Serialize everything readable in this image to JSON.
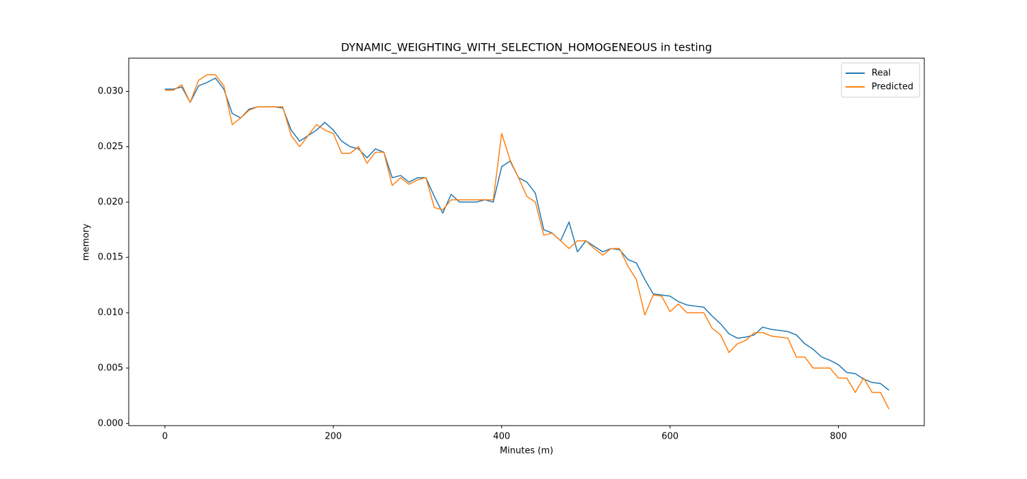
{
  "chart_data": {
    "type": "line",
    "title": "DYNAMIC_WEIGHTING_WITH_SELECTION_HOMOGENEOUS in testing",
    "x_label": "Minutes (m)",
    "y_label": "memory",
    "x": [
      0,
      10,
      20,
      30,
      40,
      50,
      60,
      70,
      80,
      90,
      100,
      110,
      120,
      130,
      140,
      150,
      160,
      170,
      180,
      190,
      200,
      210,
      220,
      230,
      240,
      250,
      260,
      270,
      280,
      290,
      300,
      310,
      320,
      330,
      340,
      350,
      360,
      370,
      380,
      390,
      400,
      410,
      420,
      430,
      440,
      450,
      460,
      470,
      480,
      490,
      500,
      510,
      520,
      530,
      540,
      550,
      560,
      570,
      580,
      590,
      600,
      610,
      620,
      630,
      640,
      650,
      660,
      670,
      680,
      690,
      700,
      710,
      720,
      730,
      740,
      750,
      760,
      770,
      780,
      790,
      800,
      810,
      820,
      830,
      840,
      850,
      860
    ],
    "series": [
      {
        "name": "Real",
        "color": "#1f77b4",
        "values": [
          0.0302,
          0.0302,
          0.0304,
          0.029,
          0.0305,
          0.0308,
          0.0312,
          0.0302,
          0.028,
          0.0276,
          0.0284,
          0.0286,
          0.0286,
          0.0286,
          0.0285,
          0.0265,
          0.0255,
          0.026,
          0.0265,
          0.0272,
          0.0265,
          0.0255,
          0.025,
          0.0248,
          0.024,
          0.0248,
          0.0245,
          0.0222,
          0.0224,
          0.0218,
          0.0222,
          0.0222,
          0.0205,
          0.019,
          0.0207,
          0.02,
          0.02,
          0.02,
          0.0202,
          0.02,
          0.0232,
          0.0237,
          0.0222,
          0.0218,
          0.0208,
          0.0175,
          0.0172,
          0.0165,
          0.0182,
          0.0155,
          0.0165,
          0.016,
          0.0155,
          0.0158,
          0.0157,
          0.0148,
          0.0145,
          0.013,
          0.0117,
          0.0116,
          0.0115,
          0.011,
          0.0107,
          0.0106,
          0.0105,
          0.0097,
          0.009,
          0.0081,
          0.0077,
          0.0078,
          0.008,
          0.0087,
          0.0085,
          0.0084,
          0.0083,
          0.008,
          0.0072,
          0.0067,
          0.006,
          0.0057,
          0.0053,
          0.0046,
          0.0045,
          0.004,
          0.0037,
          0.0036,
          0.003
        ]
      },
      {
        "name": "Predicted",
        "color": "#ff7f0e",
        "values": [
          0.0301,
          0.0301,
          0.0306,
          0.029,
          0.031,
          0.0315,
          0.0315,
          0.0305,
          0.027,
          0.0276,
          0.0283,
          0.0286,
          0.0286,
          0.0286,
          0.0286,
          0.026,
          0.025,
          0.026,
          0.027,
          0.0265,
          0.0262,
          0.0244,
          0.0244,
          0.025,
          0.0235,
          0.0245,
          0.0245,
          0.0215,
          0.0222,
          0.0216,
          0.022,
          0.0222,
          0.0195,
          0.0193,
          0.0202,
          0.0202,
          0.0202,
          0.0202,
          0.0202,
          0.0202,
          0.0262,
          0.0238,
          0.0222,
          0.0205,
          0.02,
          0.017,
          0.0172,
          0.0165,
          0.0158,
          0.0165,
          0.0165,
          0.0158,
          0.0152,
          0.0158,
          0.0158,
          0.0142,
          0.013,
          0.0098,
          0.0116,
          0.0115,
          0.0101,
          0.0108,
          0.01,
          0.01,
          0.01,
          0.0086,
          0.008,
          0.0064,
          0.0072,
          0.0075,
          0.0082,
          0.0082,
          0.0079,
          0.0078,
          0.0077,
          0.006,
          0.006,
          0.005,
          0.005,
          0.005,
          0.0041,
          0.0041,
          0.0028,
          0.0041,
          0.0028,
          0.0028,
          0.0013
        ]
      }
    ],
    "xlim": [
      -43,
      902
    ],
    "xticks": [
      0,
      200,
      400,
      600,
      800
    ],
    "ylim": [
      -0.0002,
      0.033
    ],
    "yticks": [
      {
        "value": 0,
        "label": "0.000"
      },
      {
        "value": 0.005,
        "label": "0.005"
      },
      {
        "value": 0.01,
        "label": "0.010"
      },
      {
        "value": 0.015,
        "label": "0.015"
      },
      {
        "value": 0.02,
        "label": "0.020"
      },
      {
        "value": 0.025,
        "label": "0.025"
      },
      {
        "value": 0.03,
        "label": "0.030"
      }
    ],
    "legend": "upper right",
    "grid": false
  }
}
